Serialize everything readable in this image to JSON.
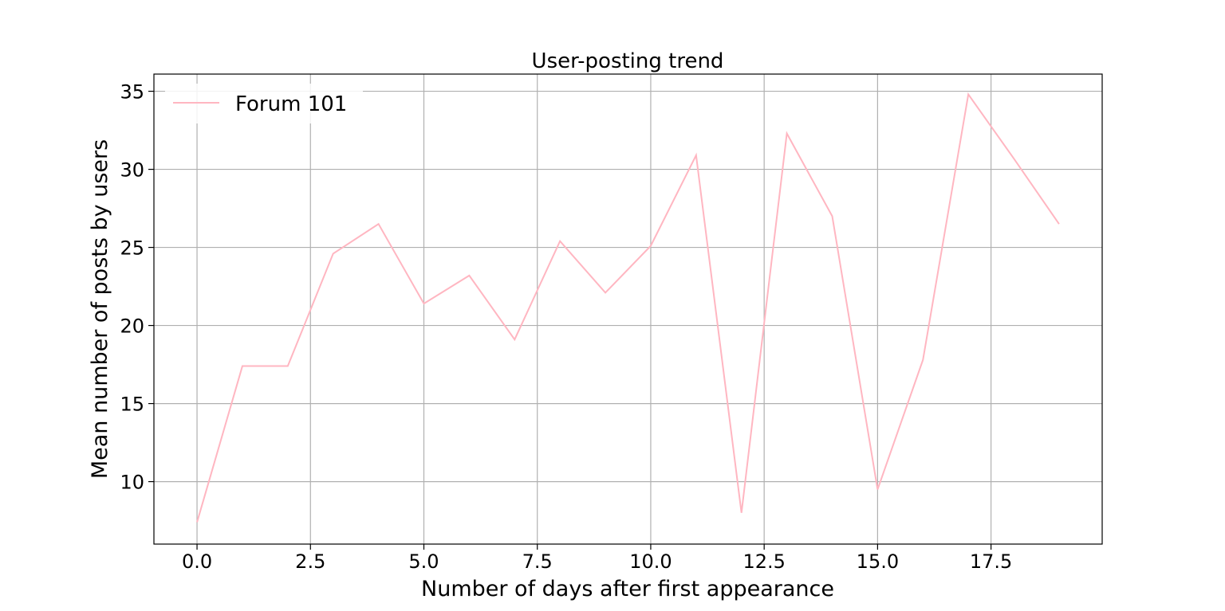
{
  "chart_data": {
    "type": "line",
    "title": "User-posting trend",
    "xlabel": "Number of days after first appearance",
    "ylabel": "Mean number of posts by users",
    "xlim": [
      -0.95,
      19.95
    ],
    "ylim": [
      6.0,
      36.1
    ],
    "xticks": [
      0.0,
      2.5,
      5.0,
      7.5,
      10.0,
      12.5,
      15.0,
      17.5
    ],
    "xtick_labels": [
      "0.0",
      "2.5",
      "5.0",
      "7.5",
      "10.0",
      "12.5",
      "15.0",
      "17.5"
    ],
    "yticks": [
      10,
      15,
      20,
      25,
      30,
      35
    ],
    "ytick_labels": [
      "10",
      "15",
      "20",
      "25",
      "30",
      "35"
    ],
    "grid": true,
    "legend_position": "upper-left",
    "x": [
      0,
      1,
      2,
      3,
      4,
      5,
      6,
      7,
      8,
      9,
      10,
      11,
      12,
      13,
      14,
      15,
      16,
      17,
      18,
      19
    ],
    "series": [
      {
        "name": "Forum 101",
        "color": "#ffb6c1",
        "values": [
          7.4,
          17.4,
          17.4,
          24.6,
          26.5,
          21.4,
          23.2,
          19.1,
          25.4,
          22.1,
          25.1,
          30.9,
          8.0,
          32.3,
          27.0,
          9.5,
          17.8,
          34.8,
          30.7,
          26.5
        ]
      }
    ]
  }
}
